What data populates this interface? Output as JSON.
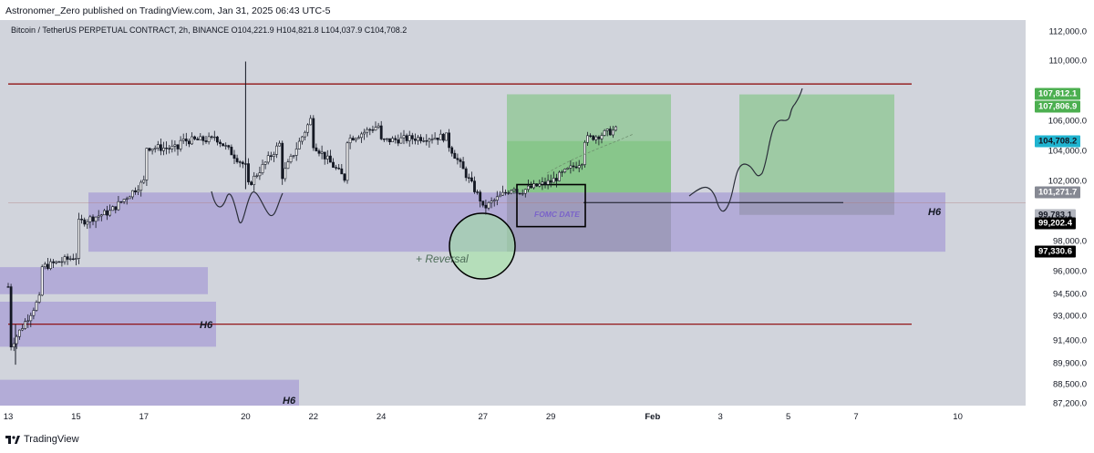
{
  "header": {
    "published": "Astronomer_Zero published on TradingView.com, Jan 31, 2025 06:43 UTC-5"
  },
  "footer": {
    "brand": "TradingView"
  },
  "symbol": {
    "line": "Bitcoin / TetherUS PERPETUAL CONTRACT, 2h, BINANCE O104,221.9 H104,821.8 L104,037.9 C104,708.2"
  },
  "colors": {
    "zone": "#9b8bd4",
    "profit": "#5fbf5f",
    "resistance": "#8b0000",
    "cyan": "#20b4d0",
    "green_badge": "#4caf50"
  },
  "annotations": {
    "h6_right": "H6",
    "h6_left": "H6",
    "h6_bottom": "H6",
    "fomc": "FOMC DATE",
    "reversal": "+ Reversal"
  },
  "badges": [
    {
      "label": "107,812.1",
      "value": 107812.1,
      "bg": "#4caf50",
      "fg": "#ffffff"
    },
    {
      "label": "107,806.9",
      "value": 107806.9,
      "bg": "#4caf50",
      "fg": "#ffffff",
      "offset": 1
    },
    {
      "label": "104,708.2",
      "value": 104708.2,
      "bg": "#20b4d0",
      "fg": "#131722"
    },
    {
      "label": "101,271.7",
      "value": 101271.7,
      "bg": "#868993",
      "fg": "#ffffff"
    },
    {
      "label": "99,783.1",
      "value": 99783.1,
      "bg": "#b2b5be",
      "fg": "#131722"
    },
    {
      "label": "99,202.4",
      "value": 99202.4,
      "bg": "#000000",
      "fg": "#ffffff"
    },
    {
      "label": "97,330.6",
      "value": 97330.6,
      "bg": "#000000",
      "fg": "#ffffff"
    }
  ],
  "chart_data": {
    "type": "candlestick",
    "title": "Bitcoin / TetherUS PERPETUAL CONTRACT, 2h, BINANCE",
    "ohlc_last": {
      "open": 104221.9,
      "high": 104821.8,
      "low": 104037.9,
      "close": 104708.2
    },
    "y_ticks": [
      {
        "label": "112,000.0",
        "value": 112000
      },
      {
        "label": "110,000.0",
        "value": 110000
      },
      {
        "label": "106,000.0",
        "value": 106000
      },
      {
        "label": "104,000.0",
        "value": 104000
      },
      {
        "label": "102,000.0",
        "value": 102000
      },
      {
        "label": "98,000.0",
        "value": 98000
      },
      {
        "label": "96,000.0",
        "value": 96000
      },
      {
        "label": "94,500.0",
        "value": 94500
      },
      {
        "label": "93,000.0",
        "value": 93000
      },
      {
        "label": "91,400.0",
        "value": 91400
      },
      {
        "label": "89,900.0",
        "value": 89900
      },
      {
        "label": "88,500.0",
        "value": 88500
      },
      {
        "label": "87,200.0",
        "value": 87200
      }
    ],
    "x_ticks": [
      {
        "label": "13",
        "date": "2025-01-13"
      },
      {
        "label": "15",
        "date": "2025-01-15"
      },
      {
        "label": "17",
        "date": "2025-01-17"
      },
      {
        "label": "20",
        "date": "2025-01-20"
      },
      {
        "label": "22",
        "date": "2025-01-22"
      },
      {
        "label": "24",
        "date": "2025-01-24"
      },
      {
        "label": "27",
        "date": "2025-01-27"
      },
      {
        "label": "29",
        "date": "2025-01-29"
      },
      {
        "label": "Feb",
        "date": "2025-02-01"
      },
      {
        "label": "3",
        "date": "2025-02-03"
      },
      {
        "label": "5",
        "date": "2025-02-05"
      },
      {
        "label": "7",
        "date": "2025-02-07"
      },
      {
        "label": "10",
        "date": "2025-02-10"
      }
    ],
    "price_path": [
      [
        "2025-01-13",
        95000
      ],
      [
        "2025-01-13",
        92000
      ],
      [
        "2025-01-13",
        90800
      ],
      [
        "2025-01-14",
        94500
      ],
      [
        "2025-01-14",
        96300
      ],
      [
        "2025-01-15",
        97000
      ],
      [
        "2025-01-15",
        99200
      ],
      [
        "2025-01-16",
        100000
      ],
      [
        "2025-01-17",
        102000
      ],
      [
        "2025-01-17",
        104300
      ],
      [
        "2025-01-18",
        104200
      ],
      [
        "2025-01-18",
        104700
      ],
      [
        "2025-01-19",
        104800
      ],
      [
        "2025-01-19",
        105200
      ],
      [
        "2025-01-20",
        103000
      ],
      [
        "2025-01-20",
        108000
      ],
      [
        "2025-01-20",
        101500
      ],
      [
        "2025-01-21",
        104500
      ],
      [
        "2025-01-21",
        102000
      ],
      [
        "2025-01-22",
        106500
      ],
      [
        "2025-01-22",
        104500
      ],
      [
        "2025-01-23",
        102000
      ],
      [
        "2025-01-23",
        104800
      ],
      [
        "2025-01-24",
        105800
      ],
      [
        "2025-01-24",
        104700
      ],
      [
        "2025-01-25",
        104900
      ],
      [
        "2025-01-26",
        105000
      ],
      [
        "2025-01-26",
        104400
      ],
      [
        "2025-01-27",
        100500
      ],
      [
        "2025-01-27",
        98700
      ],
      [
        "2025-01-27",
        100200
      ],
      [
        "2025-01-28",
        101800
      ],
      [
        "2025-01-28",
        101300
      ],
      [
        "2025-01-29",
        102000
      ],
      [
        "2025-01-30",
        103500
      ],
      [
        "2025-01-30",
        104800
      ],
      [
        "2025-01-31",
        105500
      ],
      [
        "2025-01-31",
        104708.2
      ]
    ],
    "resistance_lines": [
      108500,
      92500
    ],
    "demand_zones_h6": [
      {
        "from": 97330.6,
        "to": 101271.7
      },
      {
        "from": 94500,
        "to": 96300
      },
      {
        "from": 91000,
        "to": 94000
      },
      {
        "from": 87000,
        "to": 88800
      }
    ],
    "long_positions": [
      {
        "entry": 101271.7,
        "target": 107812.1,
        "stop": 97330.6
      },
      {
        "entry": 101271.7,
        "target": 107806.9,
        "stop": 99783.1
      }
    ],
    "grid": false
  }
}
